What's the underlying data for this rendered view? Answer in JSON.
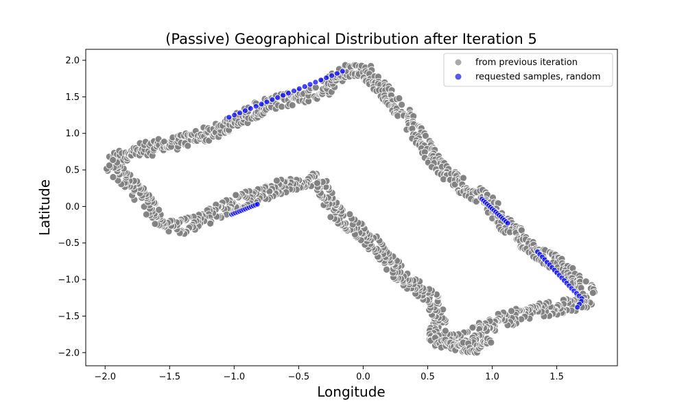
{
  "chart_data": {
    "type": "scatter",
    "title": "(Passive) Geographical Distribution after Iteration 5",
    "xlabel": "Longitude",
    "ylabel": "Latitude",
    "xlim": [
      -2.15,
      1.97
    ],
    "ylim": [
      -2.18,
      2.15
    ],
    "xticks": [
      -2.0,
      -1.5,
      -1.0,
      -0.5,
      0.0,
      0.5,
      1.0,
      1.5
    ],
    "xtick_labels": [
      "−2.0",
      "−1.5",
      "−1.0",
      "−0.5",
      "0.0",
      "0.5",
      "1.0",
      "1.5"
    ],
    "yticks": [
      -2.0,
      -1.5,
      -1.0,
      -0.5,
      0.0,
      0.5,
      1.0,
      1.5,
      2.0
    ],
    "ytick_labels": [
      "−2.0",
      "−1.5",
      "−1.0",
      "−0.5",
      "0.0",
      "0.5",
      "1.0",
      "1.5",
      "2.0"
    ],
    "grid": false,
    "legend_position": "top-right",
    "series": [
      {
        "name": "from previous iteration",
        "color": "#808080",
        "path": [
          [
            -1.97,
            0.6
          ],
          [
            -1.85,
            0.72
          ],
          [
            -1.5,
            0.85
          ],
          [
            -1.1,
            1.05
          ],
          [
            -0.8,
            1.35
          ],
          [
            -0.3,
            1.6
          ],
          [
            -0.15,
            1.85
          ],
          [
            0.0,
            1.88
          ],
          [
            0.1,
            1.72
          ],
          [
            0.3,
            1.3
          ],
          [
            0.5,
            0.75
          ],
          [
            0.7,
            0.35
          ],
          [
            0.95,
            0.1
          ],
          [
            1.1,
            -0.25
          ],
          [
            1.3,
            -0.55
          ],
          [
            1.55,
            -0.85
          ],
          [
            1.72,
            -1.1
          ],
          [
            1.75,
            -1.25
          ],
          [
            1.65,
            -1.35
          ],
          [
            1.3,
            -1.45
          ],
          [
            1.0,
            -1.6
          ],
          [
            0.8,
            -1.82
          ],
          [
            0.55,
            -1.85
          ],
          [
            0.6,
            -1.6
          ],
          [
            0.55,
            -1.3
          ],
          [
            0.3,
            -0.95
          ],
          [
            0.05,
            -0.45
          ],
          [
            -0.2,
            -0.1
          ],
          [
            -0.35,
            0.35
          ],
          [
            -0.5,
            0.35
          ],
          [
            -0.75,
            0.2
          ],
          [
            -1.0,
            0.05
          ],
          [
            -1.25,
            -0.2
          ],
          [
            -1.45,
            -0.3
          ],
          [
            -1.6,
            -0.15
          ],
          [
            -1.75,
            0.2
          ],
          [
            -1.97,
            0.6
          ]
        ],
        "spur": [
          [
            0.55,
            -1.65
          ],
          [
            0.55,
            -1.85
          ],
          [
            0.85,
            -1.95
          ],
          [
            1.0,
            -1.85
          ]
        ]
      },
      {
        "name": "requested samples, random",
        "color": "#0000ff",
        "segments": [
          [
            [
              -1.04,
              1.22
            ],
            [
              -0.16,
              1.85
            ]
          ],
          [
            [
              -1.02,
              -0.11
            ],
            [
              -0.82,
              0.03
            ]
          ],
          [
            [
              0.92,
              0.1
            ],
            [
              1.12,
              -0.23
            ]
          ],
          [
            [
              1.35,
              -0.62
            ],
            [
              1.63,
              -1.15
            ],
            [
              1.7,
              -1.27
            ],
            [
              1.66,
              -1.38
            ]
          ]
        ],
        "counts": [
          22,
          14,
          16,
          22
        ]
      }
    ]
  }
}
